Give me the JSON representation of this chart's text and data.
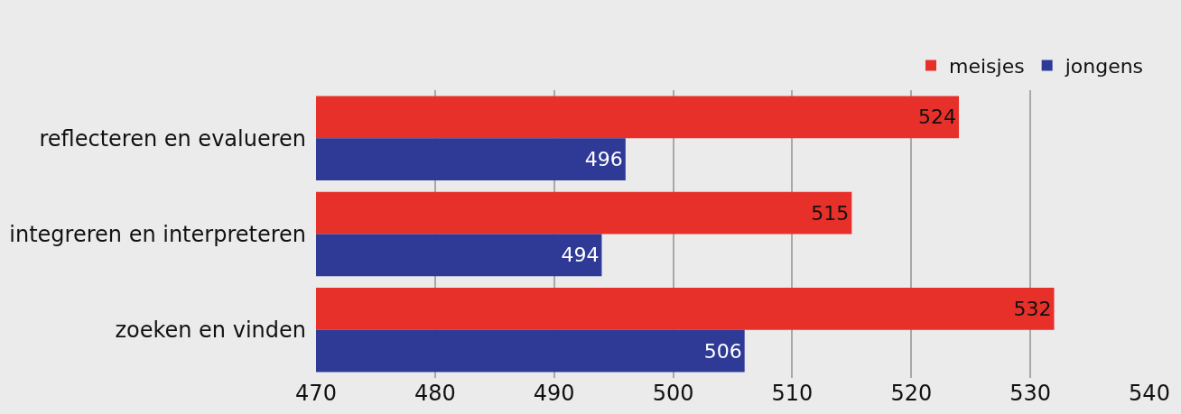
{
  "chart_data": {
    "type": "bar",
    "orientation": "horizontal",
    "categories": [
      "reflecteren en evalueren",
      "integreren en interpreteren",
      "zoeken en vinden"
    ],
    "series": [
      {
        "name": "meisjes",
        "color": "#e8302a",
        "values": [
          524,
          515,
          532
        ]
      },
      {
        "name": "jongens",
        "color": "#2e3a96",
        "values": [
          496,
          494,
          506
        ]
      }
    ],
    "xlim": [
      470,
      540
    ],
    "xticks": [
      470,
      480,
      490,
      500,
      510,
      520,
      530,
      540
    ],
    "grid": "x",
    "legend": "top right",
    "data_labels": true
  }
}
